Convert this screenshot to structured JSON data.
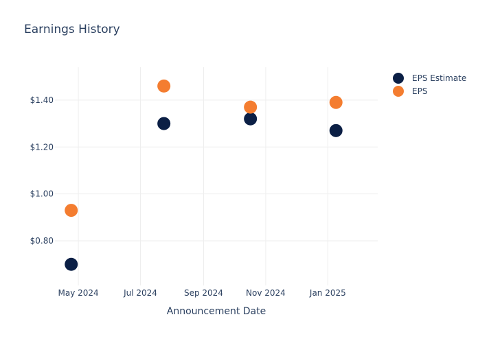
{
  "chart_data": {
    "type": "scatter",
    "title": "Earnings History",
    "xlabel": "Announcement Date",
    "ylabel": "",
    "x_ticks": [
      "May 2024",
      "Jul 2024",
      "Sep 2024",
      "Nov 2024",
      "Jan 2025"
    ],
    "x_tick_dates": [
      "2024-05-01",
      "2024-07-01",
      "2024-09-01",
      "2024-11-01",
      "2025-01-01"
    ],
    "xlim": [
      "2024-04-08",
      "2025-02-19"
    ],
    "y_ticks": [
      "$0.80",
      "$1.00",
      "$1.20",
      "$1.40"
    ],
    "y_tick_values": [
      0.8,
      1.0,
      1.2,
      1.4
    ],
    "ylim": [
      0.61,
      1.54
    ],
    "grid": true,
    "legend_position": "top-right",
    "series": [
      {
        "name": "EPS Estimate",
        "color": "#0b1f45",
        "points": [
          {
            "x": "2024-04-24",
            "y": 0.7
          },
          {
            "x": "2024-07-24",
            "y": 1.3
          },
          {
            "x": "2024-10-17",
            "y": 1.32
          },
          {
            "x": "2025-01-09",
            "y": 1.27
          }
        ]
      },
      {
        "name": "EPS",
        "color": "#f47d30",
        "points": [
          {
            "x": "2024-04-24",
            "y": 0.93
          },
          {
            "x": "2024-07-24",
            "y": 1.46
          },
          {
            "x": "2024-10-17",
            "y": 1.37
          },
          {
            "x": "2025-01-09",
            "y": 1.39
          }
        ]
      }
    ]
  }
}
